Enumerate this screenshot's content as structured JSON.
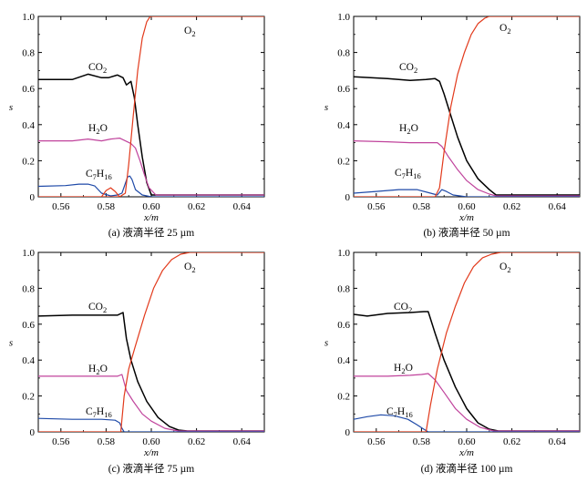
{
  "chart_data": [
    {
      "type": "line",
      "caption": "(a) 液滴半径 25 µm",
      "xlabel": "x/m",
      "ylabel": "s",
      "xlim": [
        0.55,
        0.65
      ],
      "ylim": [
        0,
        1.0
      ],
      "xticks": [
        "0.56",
        "0.58",
        "0.60",
        "0.62",
        "0.64"
      ],
      "yticks": [
        "0",
        "0.2",
        "0.4",
        "0.6",
        "0.8",
        "1.0"
      ],
      "series": [
        {
          "name": "CO2",
          "label_main": "CO",
          "label_sub": "2",
          "color": "#000000",
          "x": [
            0.55,
            0.565,
            0.572,
            0.578,
            0.581,
            0.585,
            0.5875,
            0.589,
            0.591,
            0.5925,
            0.594,
            0.596,
            0.598,
            0.6,
            0.603,
            0.62,
            0.65
          ],
          "y": [
            0.65,
            0.65,
            0.68,
            0.66,
            0.66,
            0.675,
            0.66,
            0.62,
            0.64,
            0.55,
            0.4,
            0.22,
            0.08,
            0.01,
            0.01,
            0.01,
            0.01
          ]
        },
        {
          "name": "H2O",
          "label_main": "H",
          "label_sub": "2",
          "label_tail": "O",
          "color": "#c0439c",
          "x": [
            0.55,
            0.565,
            0.572,
            0.578,
            0.582,
            0.586,
            0.5885,
            0.591,
            0.593,
            0.595,
            0.597,
            0.599,
            0.602,
            0.62,
            0.65
          ],
          "y": [
            0.31,
            0.31,
            0.32,
            0.31,
            0.32,
            0.325,
            0.31,
            0.295,
            0.27,
            0.2,
            0.12,
            0.05,
            0.01,
            0.01,
            0.01
          ]
        },
        {
          "name": "C7H16",
          "label_main": "C",
          "label_sub": "7",
          "label_tail": "H",
          "label_sub2": "16",
          "color": "#1f4aa8",
          "x": [
            0.55,
            0.562,
            0.568,
            0.572,
            0.575,
            0.578,
            0.582,
            0.585,
            0.587,
            0.5895,
            0.5905,
            0.5915,
            0.593,
            0.596,
            0.6,
            0.65
          ],
          "y": [
            0.058,
            0.062,
            0.07,
            0.07,
            0.06,
            0.02,
            0.005,
            0.01,
            0.02,
            0.11,
            0.115,
            0.095,
            0.04,
            0.01,
            0.0,
            0.0
          ]
        },
        {
          "name": "C7H16 (peak)",
          "color": "#e23a1c",
          "x": [
            0.578,
            0.58,
            0.582,
            0.584,
            0.586
          ],
          "y": [
            0.0,
            0.035,
            0.05,
            0.03,
            0.0
          ]
        },
        {
          "name": "O2",
          "label_main": "O",
          "label_sub": "2",
          "color": "#e23a1c",
          "x": [
            0.55,
            0.586,
            0.5885,
            0.59,
            0.592,
            0.594,
            0.596,
            0.598,
            0.5995,
            0.601,
            0.65
          ],
          "y": [
            0.0,
            0.0,
            0.02,
            0.18,
            0.45,
            0.7,
            0.88,
            0.97,
            1.0,
            1.0,
            1.0
          ]
        }
      ]
    },
    {
      "type": "line",
      "caption": "(b) 液滴半径 50 µm",
      "xlabel": "x/m",
      "ylabel": "s",
      "xlim": [
        0.55,
        0.65
      ],
      "ylim": [
        0,
        1.0
      ],
      "xticks": [
        "0.56",
        "0.58",
        "0.60",
        "0.62",
        "0.64"
      ],
      "yticks": [
        "0",
        "0.2",
        "0.4",
        "0.6",
        "0.8",
        "1.0"
      ],
      "series": [
        {
          "name": "CO2",
          "label_main": "CO",
          "label_sub": "2",
          "color": "#000000",
          "x": [
            0.55,
            0.565,
            0.575,
            0.582,
            0.586,
            0.588,
            0.59,
            0.593,
            0.596,
            0.6,
            0.605,
            0.61,
            0.613,
            0.65
          ],
          "y": [
            0.665,
            0.655,
            0.645,
            0.65,
            0.655,
            0.64,
            0.57,
            0.45,
            0.33,
            0.2,
            0.1,
            0.04,
            0.01,
            0.01
          ]
        },
        {
          "name": "H2O",
          "label_main": "H",
          "label_sub": "2",
          "label_tail": "O",
          "color": "#c0439c",
          "x": [
            0.55,
            0.565,
            0.575,
            0.583,
            0.587,
            0.589,
            0.592,
            0.596,
            0.6,
            0.605,
            0.61,
            0.613,
            0.65
          ],
          "y": [
            0.31,
            0.305,
            0.3,
            0.3,
            0.3,
            0.28,
            0.22,
            0.15,
            0.09,
            0.04,
            0.015,
            0.005,
            0.005
          ]
        },
        {
          "name": "C7H16",
          "label_main": "C",
          "label_sub": "7",
          "label_tail": "H",
          "label_sub2": "16",
          "color": "#1f4aa8",
          "x": [
            0.55,
            0.56,
            0.57,
            0.578,
            0.584,
            0.587,
            0.589,
            0.591,
            0.594,
            0.597,
            0.6,
            0.65
          ],
          "y": [
            0.02,
            0.03,
            0.04,
            0.04,
            0.02,
            0.01,
            0.04,
            0.03,
            0.01,
            0.005,
            0.0,
            0.0
          ]
        },
        {
          "name": "O2",
          "label_main": "O",
          "label_sub": "2",
          "color": "#e23a1c",
          "x": [
            0.55,
            0.586,
            0.588,
            0.59,
            0.593,
            0.596,
            0.599,
            0.602,
            0.605,
            0.608,
            0.61,
            0.65
          ],
          "y": [
            0.0,
            0.0,
            0.05,
            0.25,
            0.5,
            0.68,
            0.8,
            0.9,
            0.96,
            0.99,
            1.0,
            1.0
          ]
        }
      ]
    },
    {
      "type": "line",
      "caption": "(c) 液滴半径 75 µm",
      "xlabel": "x/m",
      "ylabel": "s",
      "xlim": [
        0.55,
        0.65
      ],
      "ylim": [
        0,
        1.0
      ],
      "xticks": [
        "0.56",
        "0.58",
        "0.60",
        "0.62",
        "0.64"
      ],
      "yticks": [
        "0",
        "0.2",
        "0.4",
        "0.6",
        "0.8",
        "1.0"
      ],
      "series": [
        {
          "name": "CO2",
          "label_main": "CO",
          "label_sub": "2",
          "color": "#000000",
          "x": [
            0.55,
            0.565,
            0.578,
            0.585,
            0.5875,
            0.589,
            0.591,
            0.594,
            0.598,
            0.603,
            0.608,
            0.612,
            0.616,
            0.65
          ],
          "y": [
            0.645,
            0.65,
            0.65,
            0.65,
            0.665,
            0.52,
            0.4,
            0.28,
            0.17,
            0.08,
            0.03,
            0.01,
            0.005,
            0.005
          ]
        },
        {
          "name": "H2O",
          "label_main": "H",
          "label_sub": "2",
          "label_tail": "O",
          "color": "#c0439c",
          "x": [
            0.55,
            0.565,
            0.578,
            0.585,
            0.587,
            0.589,
            0.592,
            0.596,
            0.6,
            0.606,
            0.612,
            0.65
          ],
          "y": [
            0.31,
            0.31,
            0.31,
            0.31,
            0.32,
            0.23,
            0.17,
            0.1,
            0.06,
            0.02,
            0.005,
            0.005
          ]
        },
        {
          "name": "C7H16",
          "label_main": "C",
          "label_sub": "7",
          "label_tail": "H",
          "label_sub2": "16",
          "color": "#1f4aa8",
          "x": [
            0.55,
            0.565,
            0.578,
            0.584,
            0.586,
            0.587,
            0.588,
            0.65
          ],
          "y": [
            0.075,
            0.07,
            0.07,
            0.065,
            0.05,
            0.02,
            0.0,
            0.0
          ]
        },
        {
          "name": "O2",
          "label_main": "O",
          "label_sub": "2",
          "color": "#e23a1c",
          "x": [
            0.55,
            0.5865,
            0.588,
            0.59,
            0.593,
            0.597,
            0.601,
            0.605,
            0.609,
            0.613,
            0.617,
            0.65
          ],
          "y": [
            0.0,
            0.0,
            0.2,
            0.35,
            0.48,
            0.65,
            0.8,
            0.9,
            0.96,
            0.99,
            1.0,
            1.0
          ]
        }
      ]
    },
    {
      "type": "line",
      "caption": "(d) 液滴半径 100 µm",
      "xlabel": "x/m",
      "ylabel": "s",
      "xlim": [
        0.55,
        0.65
      ],
      "ylim": [
        0,
        1.0
      ],
      "xticks": [
        "0.56",
        "0.58",
        "0.60",
        "0.62",
        "0.64"
      ],
      "yticks": [
        "0",
        "0.2",
        "0.4",
        "0.6",
        "0.8",
        "1.0"
      ],
      "series": [
        {
          "name": "CO2",
          "label_main": "CO",
          "label_sub": "2",
          "color": "#000000",
          "x": [
            0.55,
            0.556,
            0.565,
            0.575,
            0.581,
            0.583,
            0.586,
            0.59,
            0.595,
            0.6,
            0.605,
            0.61,
            0.614,
            0.65
          ],
          "y": [
            0.655,
            0.645,
            0.66,
            0.665,
            0.67,
            0.67,
            0.55,
            0.4,
            0.25,
            0.13,
            0.05,
            0.015,
            0.005,
            0.005
          ]
        },
        {
          "name": "H2O",
          "label_main": "H",
          "label_sub": "2",
          "label_tail": "O",
          "color": "#c0439c",
          "x": [
            0.55,
            0.565,
            0.575,
            0.58,
            0.583,
            0.586,
            0.59,
            0.595,
            0.6,
            0.606,
            0.612,
            0.65
          ],
          "y": [
            0.31,
            0.31,
            0.315,
            0.32,
            0.325,
            0.29,
            0.22,
            0.13,
            0.07,
            0.025,
            0.005,
            0.005
          ]
        },
        {
          "name": "C7H16",
          "label_main": "C",
          "label_sub": "7",
          "label_tail": "H",
          "label_sub2": "16",
          "color": "#1f4aa8",
          "x": [
            0.55,
            0.556,
            0.562,
            0.568,
            0.574,
            0.578,
            0.581,
            0.583,
            0.65
          ],
          "y": [
            0.07,
            0.085,
            0.095,
            0.09,
            0.07,
            0.04,
            0.015,
            0.0,
            0.0
          ]
        },
        {
          "name": "O2",
          "label_main": "O",
          "label_sub": "2",
          "color": "#e23a1c",
          "x": [
            0.55,
            0.582,
            0.584,
            0.587,
            0.591,
            0.595,
            0.599,
            0.603,
            0.607,
            0.611,
            0.615,
            0.65
          ],
          "y": [
            0.0,
            0.0,
            0.15,
            0.35,
            0.55,
            0.7,
            0.83,
            0.92,
            0.97,
            0.99,
            1.0,
            1.0
          ]
        }
      ]
    }
  ]
}
